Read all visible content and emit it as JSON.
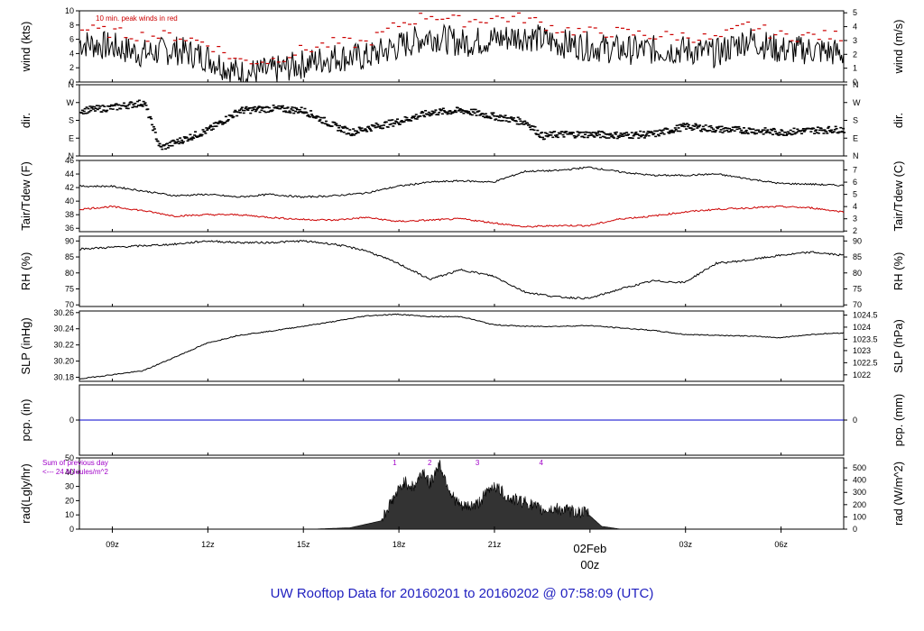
{
  "title": "UW Rooftop Data for 20160201  to  20160202 @ 07:58:09  (UTC)",
  "colors": {
    "accent": "#cc0000",
    "purple": "#a000c8",
    "blue": "#1f1fbf",
    "precip_line": "#0000cc"
  },
  "chart_data": {
    "type": "line",
    "time_axis": {
      "range": [
        "2016-02-01 07:58",
        "2016-02-02 07:58"
      ],
      "ticks": [
        {
          "t": "2016-02-01 09:00",
          "label": "09z"
        },
        {
          "t": "2016-02-01 12:00",
          "label": "12z"
        },
        {
          "t": "2016-02-01 15:00",
          "label": "15z"
        },
        {
          "t": "2016-02-01 18:00",
          "label": "18z"
        },
        {
          "t": "2016-02-01 21:00",
          "label": "21z"
        },
        {
          "t": "2016-02-02 03:00",
          "label": "03z"
        },
        {
          "t": "2016-02-02 06:00",
          "label": "06z"
        }
      ],
      "day_label": {
        "t": "2016-02-02 00:00",
        "line1": "02Feb",
        "line2": "00z"
      }
    },
    "panels": [
      {
        "id": "wind",
        "ylabel_left": "wind (kts)",
        "ylabel_right": "wind (m/s)",
        "ylim": [
          0,
          10
        ],
        "left_ticks": [
          "0",
          "2",
          "4",
          "6",
          "8",
          "10"
        ],
        "right_ticks": [
          [
            "0",
            0
          ],
          [
            "1",
            1.944
          ],
          [
            "2",
            3.888
          ],
          [
            "3",
            5.832
          ],
          [
            "4",
            7.776
          ],
          [
            "5",
            9.72
          ]
        ],
        "annotation": "10 min. peak winds in red",
        "series": [
          {
            "name": "wind",
            "t": [
              0,
              1,
              2,
              3,
              4,
              5,
              6,
              7,
              8,
              9,
              10,
              11,
              12,
              13,
              14,
              15,
              16,
              17,
              18,
              19,
              20,
              21,
              22,
              23,
              24
            ],
            "values": [
              5.5,
              5.0,
              4.0,
              4.5,
              3.5,
              1.2,
              1.5,
              2.5,
              3.5,
              3.5,
              5.0,
              6.5,
              5.5,
              6.0,
              6.5,
              5.5,
              5.0,
              4.5,
              4.5,
              4.5,
              4.0,
              6.0,
              4.5,
              4.5,
              4.0
            ]
          },
          {
            "name": "peak",
            "t": [
              0,
              1,
              2,
              3,
              4,
              5,
              6,
              7,
              8,
              9,
              10,
              11,
              12,
              13,
              14,
              15,
              16,
              17,
              18,
              19,
              20,
              21,
              22,
              23,
              24
            ],
            "values": [
              7.5,
              7.0,
              6.5,
              6.5,
              5.5,
              3.0,
              3.0,
              4.5,
              5.5,
              5.5,
              8.0,
              9.5,
              8.5,
              9.0,
              9.0,
              7.5,
              7.0,
              7.0,
              6.5,
              6.5,
              6.0,
              8.0,
              6.5,
              6.5,
              6.5
            ]
          }
        ]
      },
      {
        "id": "dir",
        "ylabel_left": "dir.",
        "ylabel_right": "dir.",
        "ylim": [
          0,
          360
        ],
        "left_ticks": [
          [
            "N",
            360
          ],
          [
            "W",
            270
          ],
          [
            "S",
            180
          ],
          [
            "E",
            90
          ],
          [
            "N",
            0
          ]
        ],
        "series": [
          {
            "name": "dir",
            "t": [
              0,
              1,
              2,
              2.5,
              3,
              4,
              5,
              6,
              7,
              8,
              8.5,
              9,
              10,
              11,
              12,
              13,
              14,
              14.5,
              15,
              16,
              17,
              18,
              19,
              20,
              21,
              22,
              23,
              24
            ],
            "values": [
              230,
              245,
              270,
              40,
              70,
              130,
              230,
              240,
              230,
              150,
              120,
              140,
              175,
              220,
              230,
              200,
              170,
              100,
              110,
              110,
              105,
              110,
              150,
              135,
              130,
              120,
              130,
              135
            ]
          }
        ]
      },
      {
        "id": "temp",
        "ylabel_left": "Tair/Tdew (F)",
        "ylabel_right": "Tair/Tdew (C)",
        "ylim": [
          35.5,
          46
        ],
        "left_ticks": [
          "36",
          "38",
          "40",
          "42",
          "44",
          "46"
        ],
        "right_ticks": [
          [
            "2",
            35.6
          ],
          [
            "3",
            37.4
          ],
          [
            "4",
            39.2
          ],
          [
            "5",
            41.0
          ],
          [
            "6",
            42.8
          ],
          [
            "7",
            44.6
          ]
        ],
        "series": [
          {
            "name": "Tair",
            "t": [
              0,
              1,
              2,
              3,
              4,
              5,
              6,
              7,
              8,
              9,
              10,
              11,
              12,
              13,
              14,
              15,
              16,
              17,
              18,
              19,
              20,
              21,
              22,
              23,
              24
            ],
            "values": [
              42.2,
              42.2,
              41.5,
              40.8,
              41.0,
              40.6,
              41.0,
              40.6,
              40.8,
              41.2,
              42.2,
              42.8,
              43.0,
              42.8,
              44.4,
              44.5,
              45.0,
              44.3,
              43.8,
              43.8,
              44.0,
              43.3,
              42.6,
              42.5,
              42.3
            ]
          },
          {
            "name": "Tdew",
            "t": [
              0,
              1,
              2,
              3,
              4,
              5,
              6,
              7,
              8,
              9,
              10,
              11,
              12,
              13,
              14,
              15,
              16,
              17,
              18,
              19,
              20,
              21,
              22,
              23,
              24
            ],
            "values": [
              38.8,
              39.2,
              38.6,
              37.8,
              38.0,
              38.0,
              37.6,
              37.3,
              37.2,
              37.6,
              37.0,
              37.2,
              37.4,
              36.8,
              36.2,
              36.4,
              36.4,
              37.4,
              37.8,
              38.4,
              38.8,
              39.0,
              39.2,
              39.0,
              38.4
            ]
          }
        ]
      },
      {
        "id": "rh",
        "ylabel_left": "RH (%)",
        "ylabel_right": "RH (%)",
        "ylim": [
          69.5,
          91.5
        ],
        "left_ticks": [
          "70",
          "75",
          "80",
          "85",
          "90"
        ],
        "right_ticks": [
          [
            "70",
            70
          ],
          [
            "75",
            75
          ],
          [
            "80",
            80
          ],
          [
            "85",
            85
          ],
          [
            "90",
            90
          ]
        ],
        "series": [
          {
            "name": "RH",
            "t": [
              0,
              1,
              2,
              3,
              4,
              5,
              6,
              7,
              8,
              9,
              10,
              11,
              12,
              13,
              14,
              15,
              16,
              17,
              18,
              19,
              20,
              21,
              22,
              23,
              24
            ],
            "values": [
              87.5,
              88.0,
              88.5,
              89.0,
              90.0,
              89.5,
              89.5,
              90.0,
              89.0,
              87.0,
              83.0,
              78.0,
              81.0,
              79.0,
              74.0,
              72.5,
              72.0,
              75.0,
              77.5,
              77.0,
              83.0,
              84.0,
              85.5,
              86.5,
              85.5
            ]
          }
        ]
      },
      {
        "id": "slp",
        "ylabel_left": "SLP (inHg)",
        "ylabel_right": "SLP (hPa)",
        "ylim": [
          30.175,
          30.262
        ],
        "left_ticks": [
          "30.18",
          "30.20",
          "30.22",
          "30.24",
          "30.26"
        ],
        "right_ticks": [
          [
            "1022",
            30.183
          ],
          [
            "1022.5",
            30.198
          ],
          [
            "1023",
            30.213
          ],
          [
            "1023.5",
            30.227
          ],
          [
            "1024",
            30.242
          ],
          [
            "1024.5",
            30.257
          ]
        ],
        "series": [
          {
            "name": "SLP",
            "t": [
              0,
              1,
              2,
              3,
              4,
              5,
              6,
              7,
              8,
              9,
              10,
              11,
              12,
              13,
              14,
              15,
              16,
              17,
              18,
              19,
              20,
              21,
              22,
              23,
              24
            ],
            "values": [
              30.178,
              30.183,
              30.188,
              30.205,
              30.222,
              30.232,
              30.237,
              30.243,
              30.249,
              30.256,
              30.258,
              30.255,
              30.255,
              30.245,
              30.243,
              30.243,
              30.244,
              30.241,
              30.238,
              30.233,
              30.232,
              30.231,
              30.229,
              30.233,
              30.235
            ]
          }
        ]
      },
      {
        "id": "pcp",
        "ylabel_left": "pcp. (in)",
        "ylabel_right": "pcp. (mm)",
        "ylim": [
          -1,
          1
        ],
        "left_ticks": [
          "0"
        ],
        "right_ticks": [
          [
            "0",
            0
          ]
        ],
        "series": [
          {
            "name": "pcp",
            "t": [
              0,
              24
            ],
            "values": [
              0,
              0
            ]
          }
        ]
      },
      {
        "id": "rad",
        "ylabel_left": "rad(Lgly/hr)",
        "ylabel_right": "rad (W/m^2)",
        "ylim": [
          0,
          50
        ],
        "left_ticks": [
          "0",
          "10",
          "20",
          "30",
          "40",
          "50"
        ],
        "right_ticks": [
          [
            "0",
            0
          ],
          [
            "100",
            8.6
          ],
          [
            "200",
            17.2
          ],
          [
            "300",
            25.8
          ],
          [
            "400",
            34.4
          ],
          [
            "500",
            43.0
          ]
        ],
        "annotation_lines": [
          "Sum of previous day",
          "<--- 24 MJoules/m^2"
        ],
        "markers": [
          [
            "1",
            9.9
          ],
          [
            "2",
            11.0
          ],
          [
            "3",
            12.5
          ],
          [
            "4",
            14.5
          ]
        ],
        "series": [
          {
            "name": "rad",
            "t": [
              7.3,
              8.5,
              9.5,
              9.8,
              10.2,
              10.5,
              10.8,
              11.0,
              11.3,
              11.7,
              12.0,
              12.5,
              13.0,
              13.5,
              14.0,
              14.5,
              15.0,
              15.5,
              16.0,
              16.4,
              17.0
            ],
            "values": [
              0,
              1,
              6,
              18,
              32,
              28,
              40,
              30,
              45,
              22,
              14,
              16,
              30,
              20,
              18,
              12,
              13,
              11,
              10,
              2,
              0
            ]
          }
        ]
      }
    ]
  }
}
